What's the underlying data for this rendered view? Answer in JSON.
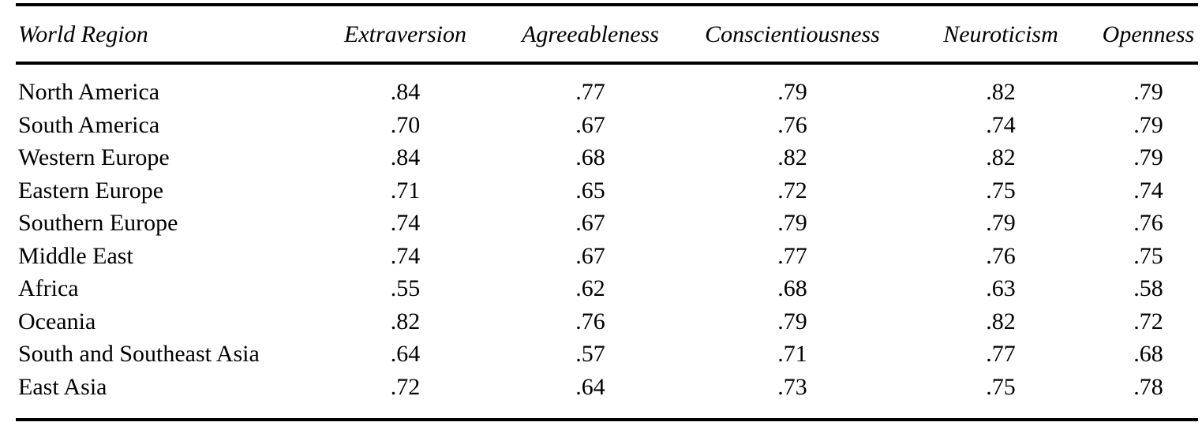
{
  "table": {
    "columns": [
      "World Region",
      "Extraversion",
      "Agreeableness",
      "Conscientiousness",
      "Neuroticism",
      "Openness"
    ],
    "rows": [
      {
        "region": "North America",
        "values": [
          ".84",
          ".77",
          ".79",
          ".82",
          ".79"
        ]
      },
      {
        "region": "South America",
        "values": [
          ".70",
          ".67",
          ".76",
          ".74",
          ".79"
        ]
      },
      {
        "region": "Western Europe",
        "values": [
          ".84",
          ".68",
          ".82",
          ".82",
          ".79"
        ]
      },
      {
        "region": "Eastern Europe",
        "values": [
          ".71",
          ".65",
          ".72",
          ".75",
          ".74"
        ]
      },
      {
        "region": "Southern Europe",
        "values": [
          ".74",
          ".67",
          ".79",
          ".79",
          ".76"
        ]
      },
      {
        "region": "Middle East",
        "values": [
          ".74",
          ".67",
          ".77",
          ".76",
          ".75"
        ]
      },
      {
        "region": "Africa",
        "values": [
          ".55",
          ".62",
          ".68",
          ".63",
          ".58"
        ]
      },
      {
        "region": "Oceania",
        "values": [
          ".82",
          ".76",
          ".79",
          ".82",
          ".72"
        ]
      },
      {
        "region": "South and Southeast Asia",
        "values": [
          ".64",
          ".57",
          ".71",
          ".77",
          ".68"
        ]
      },
      {
        "region": "East Asia",
        "values": [
          ".72",
          ".64",
          ".73",
          ".75",
          ".78"
        ]
      }
    ]
  },
  "chart_data": {
    "type": "table",
    "title": "",
    "categories": [
      "North America",
      "South America",
      "Western Europe",
      "Eastern Europe",
      "Southern Europe",
      "Middle East",
      "Africa",
      "Oceania",
      "South and Southeast Asia",
      "East Asia"
    ],
    "series": [
      {
        "name": "Extraversion",
        "values": [
          0.84,
          0.7,
          0.84,
          0.71,
          0.74,
          0.74,
          0.55,
          0.82,
          0.64,
          0.72
        ]
      },
      {
        "name": "Agreeableness",
        "values": [
          0.77,
          0.67,
          0.68,
          0.65,
          0.67,
          0.67,
          0.62,
          0.76,
          0.57,
          0.64
        ]
      },
      {
        "name": "Conscientiousness",
        "values": [
          0.79,
          0.76,
          0.82,
          0.72,
          0.79,
          0.77,
          0.68,
          0.79,
          0.71,
          0.73
        ]
      },
      {
        "name": "Neuroticism",
        "values": [
          0.82,
          0.74,
          0.82,
          0.75,
          0.79,
          0.76,
          0.63,
          0.82,
          0.77,
          0.75
        ]
      },
      {
        "name": "Openness",
        "values": [
          0.79,
          0.79,
          0.79,
          0.74,
          0.76,
          0.75,
          0.58,
          0.72,
          0.68,
          0.78
        ]
      }
    ],
    "row_header_label": "World Region"
  },
  "style": {
    "text_color": "#000000",
    "background_color": "#ffffff",
    "rule_color": "#000000"
  }
}
